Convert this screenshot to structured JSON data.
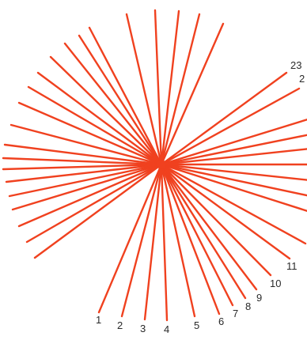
{
  "diagram": {
    "line_color": "#f0411f",
    "label_color": "#2a2a2a",
    "background": "#ffffff",
    "visible_labels": [
      "1",
      "2",
      "3",
      "4",
      "5",
      "6",
      "7",
      "8",
      "9",
      "10",
      "11",
      "23",
      "2"
    ]
  }
}
